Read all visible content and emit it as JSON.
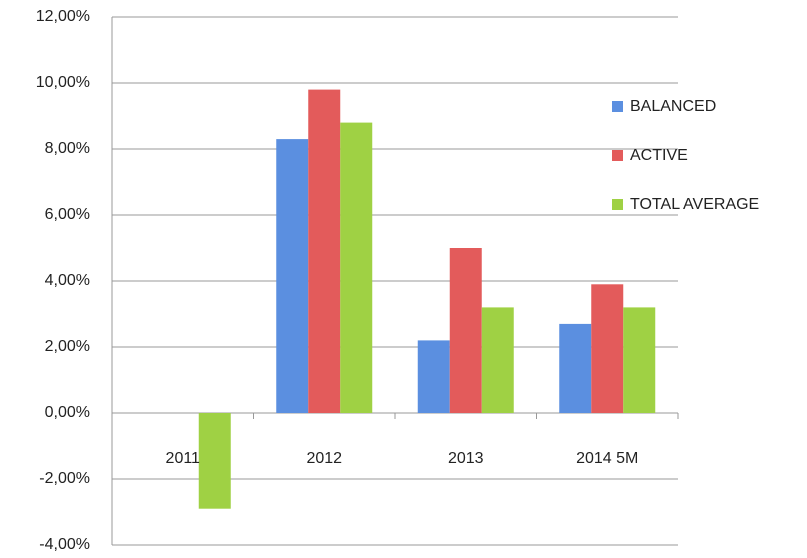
{
  "chart_data": {
    "type": "bar",
    "categories": [
      "2011",
      "2012",
      "2013",
      "2014 5M"
    ],
    "series": [
      {
        "name": "BALANCED",
        "color": "#5b8fe0",
        "values": [
          0,
          8.3,
          2.2,
          2.7
        ]
      },
      {
        "name": "ACTIVE",
        "color": "#e35b5b",
        "values": [
          0,
          9.8,
          5.0,
          3.9
        ]
      },
      {
        "name": "TOTAL AVERAGE",
        "color": "#9fd144",
        "values": [
          -2.9,
          8.8,
          3.2,
          3.2
        ]
      }
    ],
    "ylim": [
      -4,
      12
    ],
    "yticks": [
      {
        "value": -4,
        "label": "-4,00%"
      },
      {
        "value": -2,
        "label": "-2,00%"
      },
      {
        "value": 0,
        "label": "0,00%"
      },
      {
        "value": 2,
        "label": "2,00%"
      },
      {
        "value": 4,
        "label": "4,00%"
      },
      {
        "value": 6,
        "label": "6,00%"
      },
      {
        "value": 8,
        "label": "8,00%"
      },
      {
        "value": 10,
        "label": "10,00%"
      },
      {
        "value": 12,
        "label": "12,00%"
      }
    ],
    "grid": true,
    "legend": "right"
  }
}
